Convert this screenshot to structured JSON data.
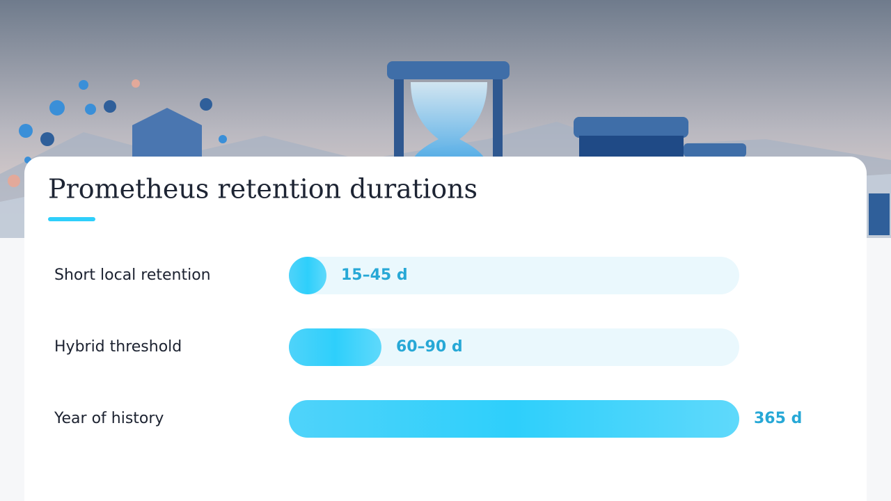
{
  "chart_data": {
    "type": "bar",
    "orientation": "horizontal",
    "title": "Prometheus retention durations",
    "categories": [
      "Short local retention",
      "Hybrid threshold",
      "Year of history"
    ],
    "values": [
      30,
      75,
      365
    ],
    "value_labels": [
      "15–45 d",
      "60–90 d",
      "365 d"
    ],
    "xlim": [
      0,
      365
    ],
    "color": "#2ecffb",
    "track_color": "#eaf8fd"
  }
}
